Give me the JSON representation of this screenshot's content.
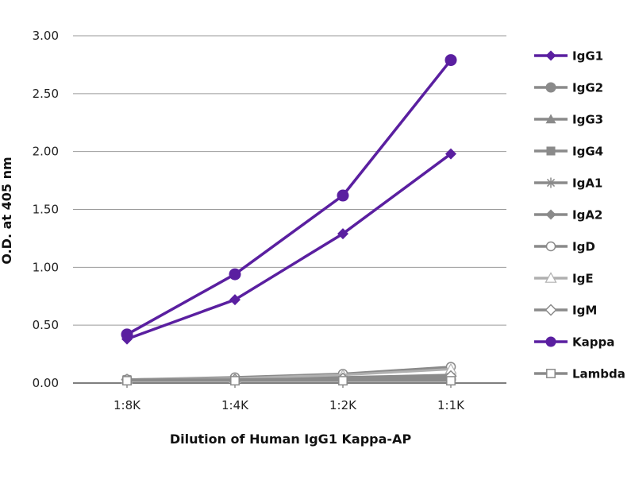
{
  "chart_data": {
    "type": "line",
    "title": "",
    "xlabel": "Dilution of Human IgG1 Kappa-AP",
    "ylabel": "O.D. at 405 nm",
    "categories": [
      "1:8K",
      "1:4K",
      "1:2K",
      "1:1K"
    ],
    "ylim": [
      0,
      3.0
    ],
    "yticks": [
      0.0,
      0.5,
      1.0,
      1.5,
      2.0,
      2.5,
      3.0
    ],
    "ytick_labels": [
      "0.00",
      "0.50",
      "1.00",
      "1.50",
      "2.00",
      "2.50",
      "3.00"
    ],
    "grid": true,
    "legend_position": "right",
    "series": [
      {
        "name": "IgG1",
        "color": "#5a1fa0",
        "marker": "diamond",
        "values": [
          0.38,
          0.72,
          1.29,
          1.98
        ]
      },
      {
        "name": "IgG2",
        "color": "#8a8a8a",
        "marker": "circle",
        "values": [
          0.03,
          0.03,
          0.03,
          0.03
        ]
      },
      {
        "name": "IgG3",
        "color": "#8a8a8a",
        "marker": "triangle",
        "values": [
          0.03,
          0.03,
          0.03,
          0.03
        ]
      },
      {
        "name": "IgG4",
        "color": "#8a8a8a",
        "marker": "square",
        "values": [
          0.03,
          0.03,
          0.03,
          0.03
        ]
      },
      {
        "name": "IgA1",
        "color": "#8a8a8a",
        "marker": "star",
        "values": [
          0.03,
          0.04,
          0.05,
          0.07
        ]
      },
      {
        "name": "IgA2",
        "color": "#8a8a8a",
        "marker": "diamond",
        "values": [
          0.03,
          0.03,
          0.04,
          0.05
        ]
      },
      {
        "name": "IgD",
        "color": "#8a8a8a",
        "marker": "circle-open",
        "values": [
          0.03,
          0.05,
          0.08,
          0.14
        ]
      },
      {
        "name": "IgE",
        "color": "#b0b0b0",
        "marker": "triangle-open",
        "values": [
          0.03,
          0.04,
          0.07,
          0.12
        ]
      },
      {
        "name": "IgM",
        "color": "#8a8a8a",
        "marker": "diamond-open",
        "values": [
          0.03,
          0.03,
          0.04,
          0.06
        ]
      },
      {
        "name": "Kappa",
        "color": "#5a1fa0",
        "marker": "circle",
        "values": [
          0.42,
          0.94,
          1.62,
          2.79
        ]
      },
      {
        "name": "Lambda",
        "color": "#8a8a8a",
        "marker": "square-open",
        "values": [
          0.02,
          0.02,
          0.02,
          0.02
        ]
      }
    ]
  }
}
